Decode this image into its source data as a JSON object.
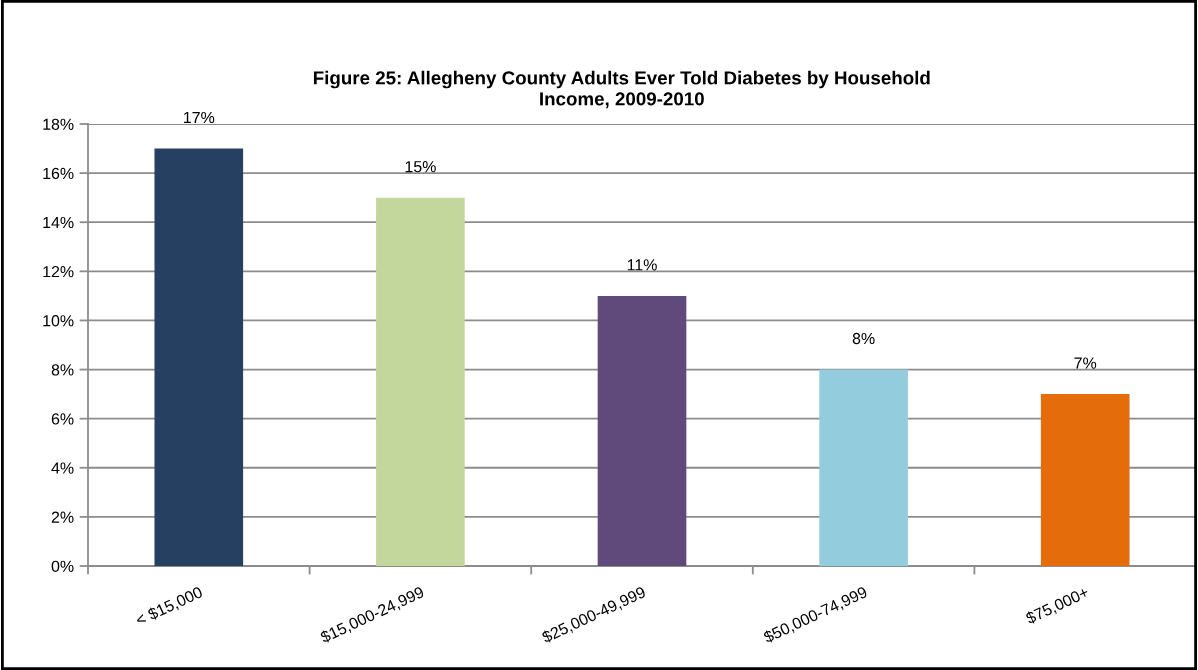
{
  "chart_data": {
    "type": "bar",
    "title": "Figure 25: Allegheny County Adults Ever Told Diabetes by Household\nIncome, 2009-2010",
    "categories": [
      "< $15,000",
      "$15,000-24,999",
      "$25,000-49,999",
      "$50,000-74,999",
      "$75,000+"
    ],
    "values": [
      17,
      15,
      11,
      8,
      7
    ],
    "colors": [
      "#264061",
      "#c3d69b",
      "#604a7b",
      "#93cddd",
      "#e46c0a"
    ],
    "value_labels": [
      "17%",
      "15%",
      "11%",
      "8%",
      "7%"
    ],
    "ylim": [
      0,
      18
    ],
    "yticks": [
      {
        "value": 0,
        "label": "0%"
      },
      {
        "value": 2,
        "label": "2%"
      },
      {
        "value": 4,
        "label": "4%"
      },
      {
        "value": 6,
        "label": "6%"
      },
      {
        "value": 8,
        "label": "8%"
      },
      {
        "value": 10,
        "label": "10%"
      },
      {
        "value": 12,
        "label": "12%"
      },
      {
        "value": 14,
        "label": "14%"
      },
      {
        "value": 16,
        "label": "16%"
      },
      {
        "value": 18,
        "label": "18%"
      }
    ],
    "grid": "y",
    "legend": false
  }
}
